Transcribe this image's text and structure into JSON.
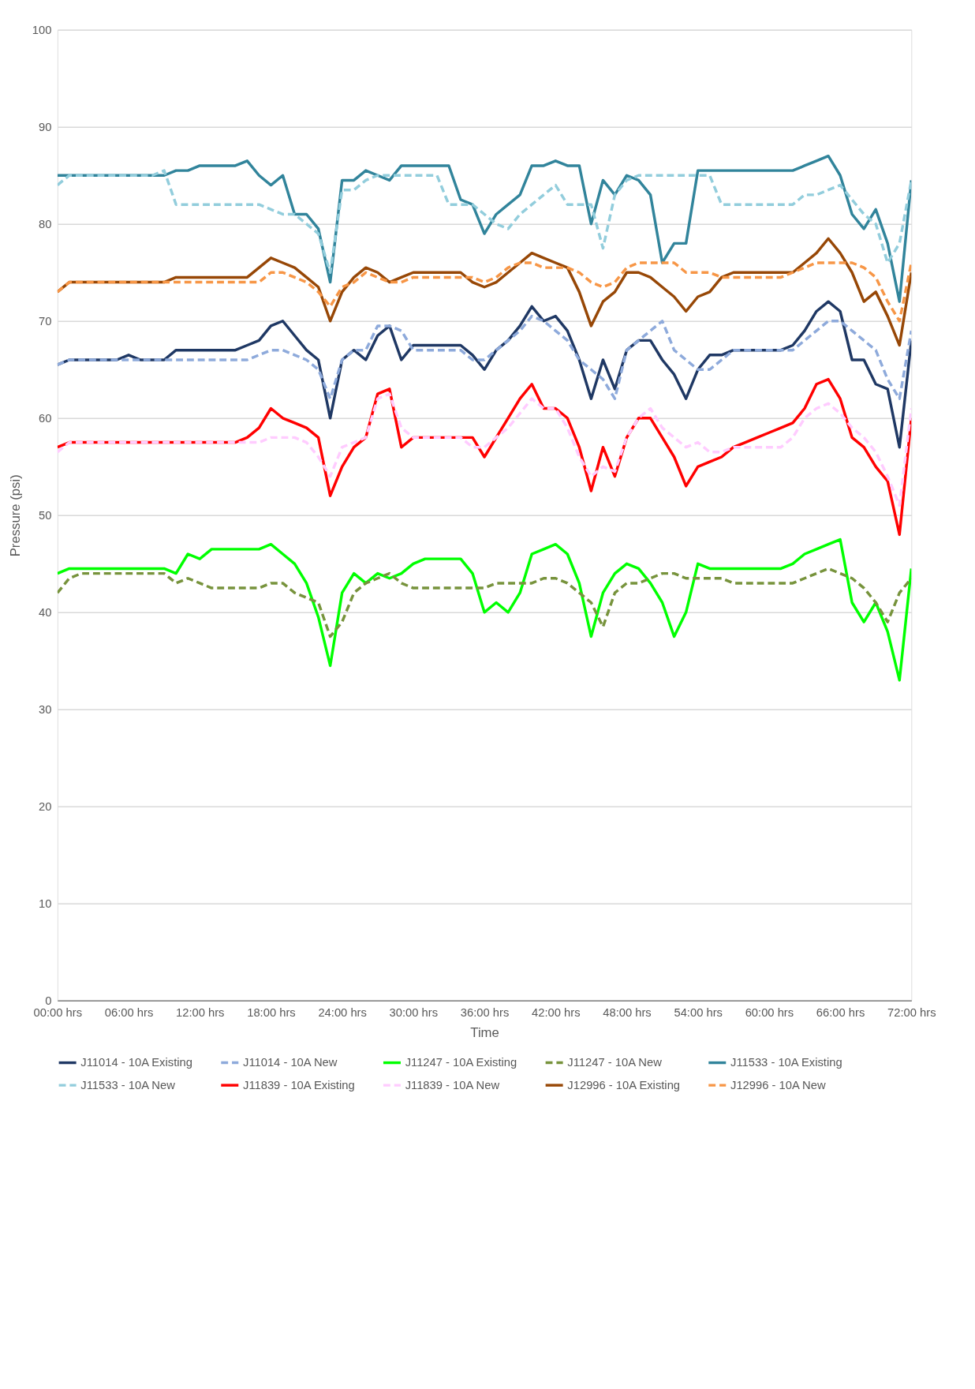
{
  "chart_data": {
    "type": "line",
    "xlabel": "Time",
    "ylabel": "Pressure (psi)",
    "categories": [
      "00:00 hrs",
      null,
      null,
      null,
      null,
      null,
      "06:00 hrs",
      null,
      null,
      null,
      null,
      null,
      "12:00 hrs",
      null,
      null,
      null,
      null,
      null,
      "18:00 hrs",
      null,
      null,
      null,
      null,
      null,
      "24:00 hrs",
      null,
      null,
      null,
      null,
      null,
      "30:00 hrs",
      null,
      null,
      null,
      null,
      null,
      "36:00 hrs",
      null,
      null,
      null,
      null,
      null,
      "42:00 hrs",
      null,
      null,
      null,
      null,
      null,
      "48:00 hrs",
      null,
      null,
      null,
      null,
      null,
      "54:00 hrs",
      null,
      null,
      null,
      null,
      null,
      "60:00 hrs",
      null,
      null,
      null,
      null,
      null,
      "66:00 hrs",
      null,
      null,
      null,
      null,
      null,
      "72:00 hrs"
    ],
    "ylim": [
      0,
      100
    ],
    "yticks": [
      0,
      10,
      20,
      30,
      40,
      50,
      60,
      70,
      80,
      90,
      100
    ],
    "grid": "y",
    "legend": "bottom",
    "marker": "none",
    "series": [
      {
        "name": "J11014 - 10A Existing",
        "color": "#1f3864",
        "line_style": "solid",
        "values": [
          65.5,
          66,
          66,
          66,
          66,
          66,
          66.5,
          66,
          66,
          66,
          67,
          67,
          67,
          67,
          67,
          67,
          67.5,
          68,
          69.5,
          70,
          68.5,
          67,
          66,
          60,
          66,
          67,
          66,
          68.5,
          69.5,
          66,
          67.5,
          67.5,
          67.5,
          67.5,
          67.5,
          66.5,
          65,
          67,
          68,
          69.5,
          71.5,
          70,
          70.5,
          69,
          66,
          62,
          66,
          63,
          67,
          68,
          68,
          66,
          64.5,
          62,
          65,
          66.5,
          66.5,
          67,
          67,
          67,
          67,
          67,
          67.5,
          69,
          71,
          72,
          71,
          66,
          66,
          63.5,
          63,
          57,
          68
        ]
      },
      {
        "name": "J11014 - 10A New",
        "color": "#8eaadb",
        "line_style": "dashed",
        "values": [
          65.5,
          66,
          66,
          66,
          66,
          66,
          66,
          66,
          66,
          66,
          66,
          66,
          66,
          66,
          66,
          66,
          66,
          66.5,
          67,
          67,
          66.5,
          66,
          65,
          62,
          66,
          67,
          67,
          69.5,
          69.5,
          69,
          67,
          67,
          67,
          67,
          67,
          66,
          66,
          67,
          68,
          69,
          70.5,
          70,
          69,
          68,
          66,
          65,
          64,
          62,
          67,
          68,
          69,
          70,
          67,
          66,
          65,
          65,
          66,
          67,
          67,
          67,
          67,
          67,
          67,
          68,
          69,
          70,
          70,
          69,
          68,
          67,
          64,
          62,
          69
        ]
      },
      {
        "name": "J11247 - 10A Existing",
        "color": "#00ff00",
        "line_style": "solid",
        "values": [
          44,
          44.5,
          44.5,
          44.5,
          44.5,
          44.5,
          44.5,
          44.5,
          44.5,
          44.5,
          44,
          46,
          45.5,
          46.5,
          46.5,
          46.5,
          46.5,
          46.5,
          47,
          46,
          45,
          43,
          39.5,
          34.5,
          42,
          44,
          43,
          44,
          43.5,
          44,
          45,
          45.5,
          45.5,
          45.5,
          45.5,
          44,
          40,
          41,
          40,
          42,
          46,
          46.5,
          47,
          46,
          43,
          37.5,
          42,
          44,
          45,
          44.5,
          43,
          41,
          37.5,
          40,
          45,
          44.5,
          44.5,
          44.5,
          44.5,
          44.5,
          44.5,
          44.5,
          45,
          46,
          46.5,
          47,
          47.5,
          41,
          39,
          41,
          38,
          33,
          44.5
        ]
      },
      {
        "name": "J11247 - 10A New",
        "color": "#77933c",
        "line_style": "dashed",
        "values": [
          42,
          43.5,
          44,
          44,
          44,
          44,
          44,
          44,
          44,
          44,
          43,
          43.5,
          43,
          42.5,
          42.5,
          42.5,
          42.5,
          42.5,
          43,
          43,
          42,
          41.5,
          41,
          37.5,
          39,
          42,
          43,
          43.5,
          44,
          43,
          42.5,
          42.5,
          42.5,
          42.5,
          42.5,
          42.5,
          42.5,
          43,
          43,
          43,
          43,
          43.5,
          43.5,
          43,
          42,
          41,
          38.5,
          42,
          43,
          43,
          43.5,
          44,
          44,
          43.5,
          43.5,
          43.5,
          43.5,
          43,
          43,
          43,
          43,
          43,
          43,
          43.5,
          44,
          44.5,
          44,
          43.5,
          42.5,
          41,
          39,
          42,
          43.5
        ]
      },
      {
        "name": "J11533 - 10A Existing",
        "color": "#31849b",
        "line_style": "solid",
        "values": [
          85,
          85,
          85,
          85,
          85,
          85,
          85,
          85,
          85,
          85,
          85.5,
          85.5,
          86,
          86,
          86,
          86,
          86.5,
          85,
          84,
          85,
          81,
          81,
          79.5,
          74,
          84.5,
          84.5,
          85.5,
          85,
          84.5,
          86,
          86,
          86,
          86,
          86,
          82.5,
          82,
          79,
          81,
          82,
          83,
          86,
          86,
          86.5,
          86,
          86,
          80,
          84.5,
          83,
          85,
          84.5,
          83,
          76,
          78,
          78,
          85.5,
          85.5,
          85.5,
          85.5,
          85.5,
          85.5,
          85.5,
          85.5,
          85.5,
          86,
          86.5,
          87,
          85,
          81,
          79.5,
          81.5,
          78,
          72,
          84.5
        ]
      },
      {
        "name": "J11533 - 10A New",
        "color": "#92cddc",
        "line_style": "dashed",
        "values": [
          84,
          85,
          85,
          85,
          85,
          85,
          85,
          85,
          85,
          85.5,
          82,
          82,
          82,
          82,
          82,
          82,
          82,
          82,
          81.5,
          81,
          81,
          80,
          79,
          75,
          83.5,
          83.5,
          84.5,
          85,
          85,
          85,
          85,
          85,
          85,
          82,
          82,
          82,
          81,
          80,
          79.5,
          81,
          82,
          83,
          84,
          82,
          82,
          82,
          77.5,
          83,
          84.5,
          85,
          85,
          85,
          85,
          85,
          85,
          85,
          82,
          82,
          82,
          82,
          82,
          82,
          82,
          83,
          83,
          83.5,
          84,
          82.5,
          81,
          80,
          76,
          78,
          84.5
        ]
      },
      {
        "name": "J11839 - 10A Existing",
        "color": "#ff0000",
        "line_style": "solid",
        "values": [
          57,
          57.5,
          57.5,
          57.5,
          57.5,
          57.5,
          57.5,
          57.5,
          57.5,
          57.5,
          57.5,
          57.5,
          57.5,
          57.5,
          57.5,
          57.5,
          58,
          59,
          61,
          60,
          59.5,
          59,
          58,
          52,
          55,
          57,
          58,
          62.5,
          63,
          57,
          58,
          58,
          58,
          58,
          58,
          58,
          56,
          58,
          60,
          62,
          63.5,
          61,
          61,
          60,
          57,
          52.5,
          57,
          54,
          58,
          60,
          60,
          58,
          56,
          53,
          55,
          55.5,
          56,
          57,
          57.5,
          58,
          58.5,
          59,
          59.5,
          61,
          63.5,
          64,
          62,
          58,
          57,
          55,
          53.5,
          48,
          60
        ]
      },
      {
        "name": "J11839 - 10A New",
        "color": "#ffccff",
        "line_style": "dashed",
        "values": [
          56.5,
          57.5,
          57.5,
          57.5,
          57.5,
          57.5,
          57.5,
          57.5,
          57.5,
          57.5,
          57.5,
          57.5,
          57.5,
          57.5,
          57.5,
          57.5,
          57.5,
          57.5,
          58,
          58,
          58,
          57.5,
          56,
          54,
          57,
          57.5,
          58,
          62,
          62.5,
          59,
          58,
          58,
          58,
          58,
          58,
          57,
          57,
          58,
          59,
          60.5,
          62,
          61,
          61,
          59,
          56,
          54,
          55,
          54.5,
          58,
          60,
          61,
          59,
          58,
          57,
          57.5,
          56.5,
          56.5,
          57,
          57,
          57,
          57,
          57,
          58,
          60,
          61,
          61.5,
          60.5,
          59,
          58,
          56.5,
          54,
          51,
          61
        ]
      },
      {
        "name": "J12996 - 10A Existing",
        "color": "#974706",
        "line_style": "solid",
        "values": [
          73,
          74,
          74,
          74,
          74,
          74,
          74,
          74,
          74,
          74,
          74.5,
          74.5,
          74.5,
          74.5,
          74.5,
          74.5,
          74.5,
          75.5,
          76.5,
          76,
          75.5,
          74.5,
          73.5,
          70,
          73,
          74.5,
          75.5,
          75,
          74,
          74.5,
          75,
          75,
          75,
          75,
          75,
          74,
          73.5,
          74,
          75,
          76,
          77,
          76.5,
          76,
          75.5,
          73,
          69.5,
          72,
          73,
          75,
          75,
          74.5,
          73.5,
          72.5,
          71,
          72.5,
          73,
          74.5,
          75,
          75,
          75,
          75,
          75,
          75,
          76,
          77,
          78.5,
          77,
          75,
          72,
          73,
          70.5,
          67.5,
          75
        ]
      },
      {
        "name": "J12996 - 10A New",
        "color": "#f79646",
        "line_style": "dashed",
        "values": [
          73,
          74,
          74,
          74,
          74,
          74,
          74,
          74,
          74,
          74,
          74,
          74,
          74,
          74,
          74,
          74,
          74,
          74,
          75,
          75,
          74.5,
          74,
          73,
          71.5,
          73.5,
          74,
          75,
          74.5,
          74,
          74,
          74.5,
          74.5,
          74.5,
          74.5,
          74.5,
          74.5,
          74,
          74.5,
          75.5,
          76,
          76,
          75.5,
          75.5,
          75.5,
          75,
          74,
          73.5,
          74,
          75.5,
          76,
          76,
          76,
          76,
          75,
          75,
          75,
          74.5,
          74.5,
          74.5,
          74.5,
          74.5,
          74.5,
          75,
          75.5,
          76,
          76,
          76,
          76,
          75.5,
          74.5,
          72,
          70,
          76
        ]
      }
    ]
  }
}
